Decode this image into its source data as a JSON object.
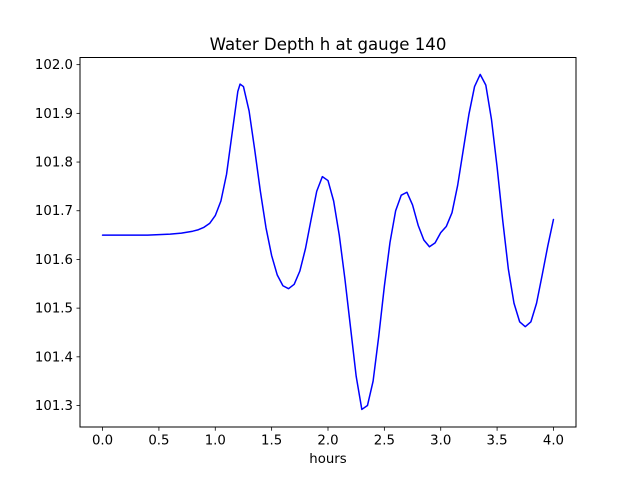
{
  "chart_data": {
    "type": "line",
    "title": "Water Depth h at gauge 140",
    "xlabel": "hours",
    "ylabel": "",
    "xlim": [
      -0.2,
      4.2
    ],
    "ylim": [
      101.2555,
      102.0145
    ],
    "xticks": [
      0.0,
      0.5,
      1.0,
      1.5,
      2.0,
      2.5,
      3.0,
      3.5,
      4.0
    ],
    "xticklabels": [
      "0.0",
      "0.5",
      "1.0",
      "1.5",
      "2.0",
      "2.5",
      "3.0",
      "3.5",
      "4.0"
    ],
    "yticks": [
      101.3,
      101.4,
      101.5,
      101.6,
      101.7,
      101.8,
      101.9,
      102.0
    ],
    "yticklabels": [
      "101.3",
      "101.4",
      "101.5",
      "101.6",
      "101.7",
      "101.8",
      "101.9",
      "102.0"
    ],
    "grid": false,
    "legend": "none",
    "line_color": "#0000ff",
    "line_width": 1.5,
    "series": [
      {
        "name": "h",
        "x": [
          0.0,
          0.1,
          0.2,
          0.3,
          0.4,
          0.5,
          0.6,
          0.7,
          0.8,
          0.85,
          0.9,
          0.95,
          1.0,
          1.05,
          1.1,
          1.15,
          1.2,
          1.22,
          1.25,
          1.3,
          1.35,
          1.4,
          1.45,
          1.5,
          1.55,
          1.6,
          1.65,
          1.7,
          1.75,
          1.8,
          1.85,
          1.9,
          1.95,
          2.0,
          2.05,
          2.1,
          2.15,
          2.2,
          2.25,
          2.3,
          2.35,
          2.4,
          2.45,
          2.5,
          2.55,
          2.6,
          2.65,
          2.7,
          2.75,
          2.8,
          2.85,
          2.9,
          2.95,
          3.0,
          3.05,
          3.1,
          3.15,
          3.2,
          3.25,
          3.3,
          3.35,
          3.4,
          3.45,
          3.5,
          3.55,
          3.6,
          3.65,
          3.7,
          3.75,
          3.8,
          3.85,
          3.9,
          3.95,
          4.0
        ],
        "y": [
          101.65,
          101.65,
          101.65,
          101.65,
          101.65,
          101.651,
          101.652,
          101.654,
          101.658,
          101.661,
          101.666,
          101.674,
          101.69,
          101.72,
          101.775,
          101.86,
          101.945,
          101.96,
          101.955,
          101.905,
          101.825,
          101.74,
          101.665,
          101.608,
          101.568,
          101.546,
          101.54,
          101.549,
          101.576,
          101.622,
          101.682,
          101.74,
          101.77,
          101.762,
          101.72,
          101.65,
          101.56,
          101.46,
          101.36,
          101.292,
          101.3,
          101.35,
          101.442,
          101.545,
          101.635,
          101.7,
          101.732,
          101.738,
          101.712,
          101.67,
          101.64,
          101.626,
          101.634,
          101.655,
          101.668,
          101.696,
          101.752,
          101.825,
          101.898,
          101.955,
          101.98,
          101.958,
          101.888,
          101.79,
          101.68,
          101.58,
          101.51,
          101.472,
          101.462,
          101.472,
          101.51,
          101.568,
          101.628,
          101.682
        ]
      }
    ]
  }
}
